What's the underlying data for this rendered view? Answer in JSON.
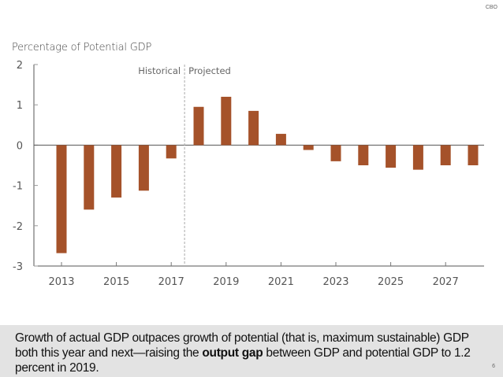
{
  "header": {
    "logo_text": "CBO"
  },
  "chart_data": {
    "type": "bar",
    "title": "",
    "ylabel": "Percentage of Potential GDP",
    "xlabel": "",
    "ylim": [
      -3,
      2
    ],
    "yticks": [
      2,
      1,
      0,
      -1,
      -2,
      -3
    ],
    "ytick_labels": [
      "2",
      "1",
      "0",
      "-1",
      "-2",
      "-3"
    ],
    "categories": [
      "2013",
      "2014",
      "2015",
      "2016",
      "2017",
      "2018",
      "2019",
      "2020",
      "2021",
      "2022",
      "2023",
      "2024",
      "2025",
      "2026",
      "2027",
      "2028"
    ],
    "xtick_labels": [
      "2013",
      "2015",
      "2017",
      "2019",
      "2021",
      "2023",
      "2025",
      "2027"
    ],
    "values": [
      -2.68,
      -1.6,
      -1.3,
      -1.13,
      -0.33,
      0.95,
      1.2,
      0.85,
      0.28,
      -0.12,
      -0.4,
      -0.5,
      -0.56,
      -0.61,
      -0.5,
      -0.5
    ],
    "bar_color": "#a5522a",
    "grid": false,
    "annotations": {
      "divider_after": "2017",
      "left_label": "Historical",
      "right_label": "Projected"
    }
  },
  "caption": {
    "text_before": "Growth of actual GDP outpaces growth of potential (that is, maximum sustainable) GDP both this year and next—raising the ",
    "bold": "output gap",
    "text_after": " between GDP and potential GDP to 1.2 percent in 2019."
  },
  "footer": {
    "page_number": "6"
  }
}
